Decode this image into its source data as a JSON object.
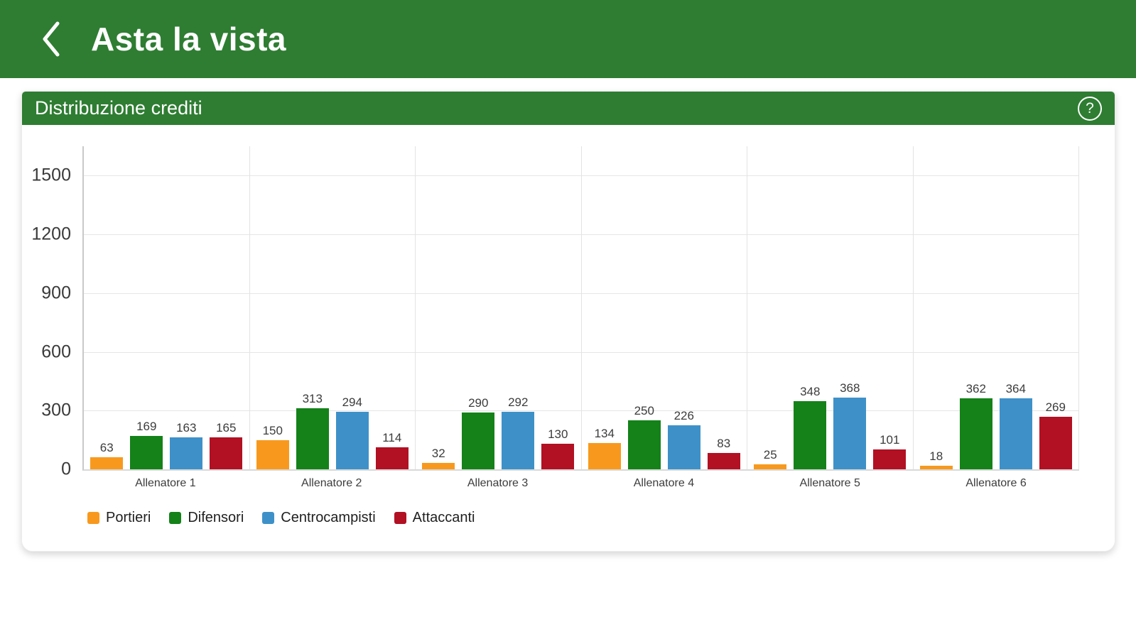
{
  "header": {
    "title": "Asta la vista"
  },
  "card": {
    "title": "Distribuzione crediti",
    "help_glyph": "?"
  },
  "colors": {
    "app_green": "#2E7D32",
    "portieri_orange": "#F8991D",
    "difensori_green": "#148219",
    "centrocampisti_blue": "#3E91C8",
    "attaccanti_red": "#B21023"
  },
  "chart_data": {
    "type": "bar",
    "title": "Distribuzione crediti",
    "categories": [
      "Allenatore 1",
      "Allenatore 2",
      "Allenatore 3",
      "Allenatore 4",
      "Allenatore 5",
      "Allenatore 6"
    ],
    "series": [
      {
        "name": "Portieri",
        "color": "#F8991D",
        "values": [
          63,
          150,
          32,
          134,
          25,
          18
        ]
      },
      {
        "name": "Difensori",
        "color": "#148219",
        "values": [
          169,
          313,
          290,
          250,
          348,
          362
        ]
      },
      {
        "name": "Centrocampisti",
        "color": "#3E91C8",
        "values": [
          163,
          294,
          292,
          226,
          368,
          364
        ]
      },
      {
        "name": "Attaccanti",
        "color": "#B21023",
        "values": [
          165,
          114,
          130,
          83,
          101,
          269
        ]
      }
    ],
    "xlabel": "",
    "ylabel": "",
    "ylim": [
      0,
      1500
    ],
    "yticks": [
      0,
      300,
      600,
      900,
      1200,
      1500
    ],
    "grid": true,
    "value_labels": true,
    "legend_position": "bottom-left"
  }
}
